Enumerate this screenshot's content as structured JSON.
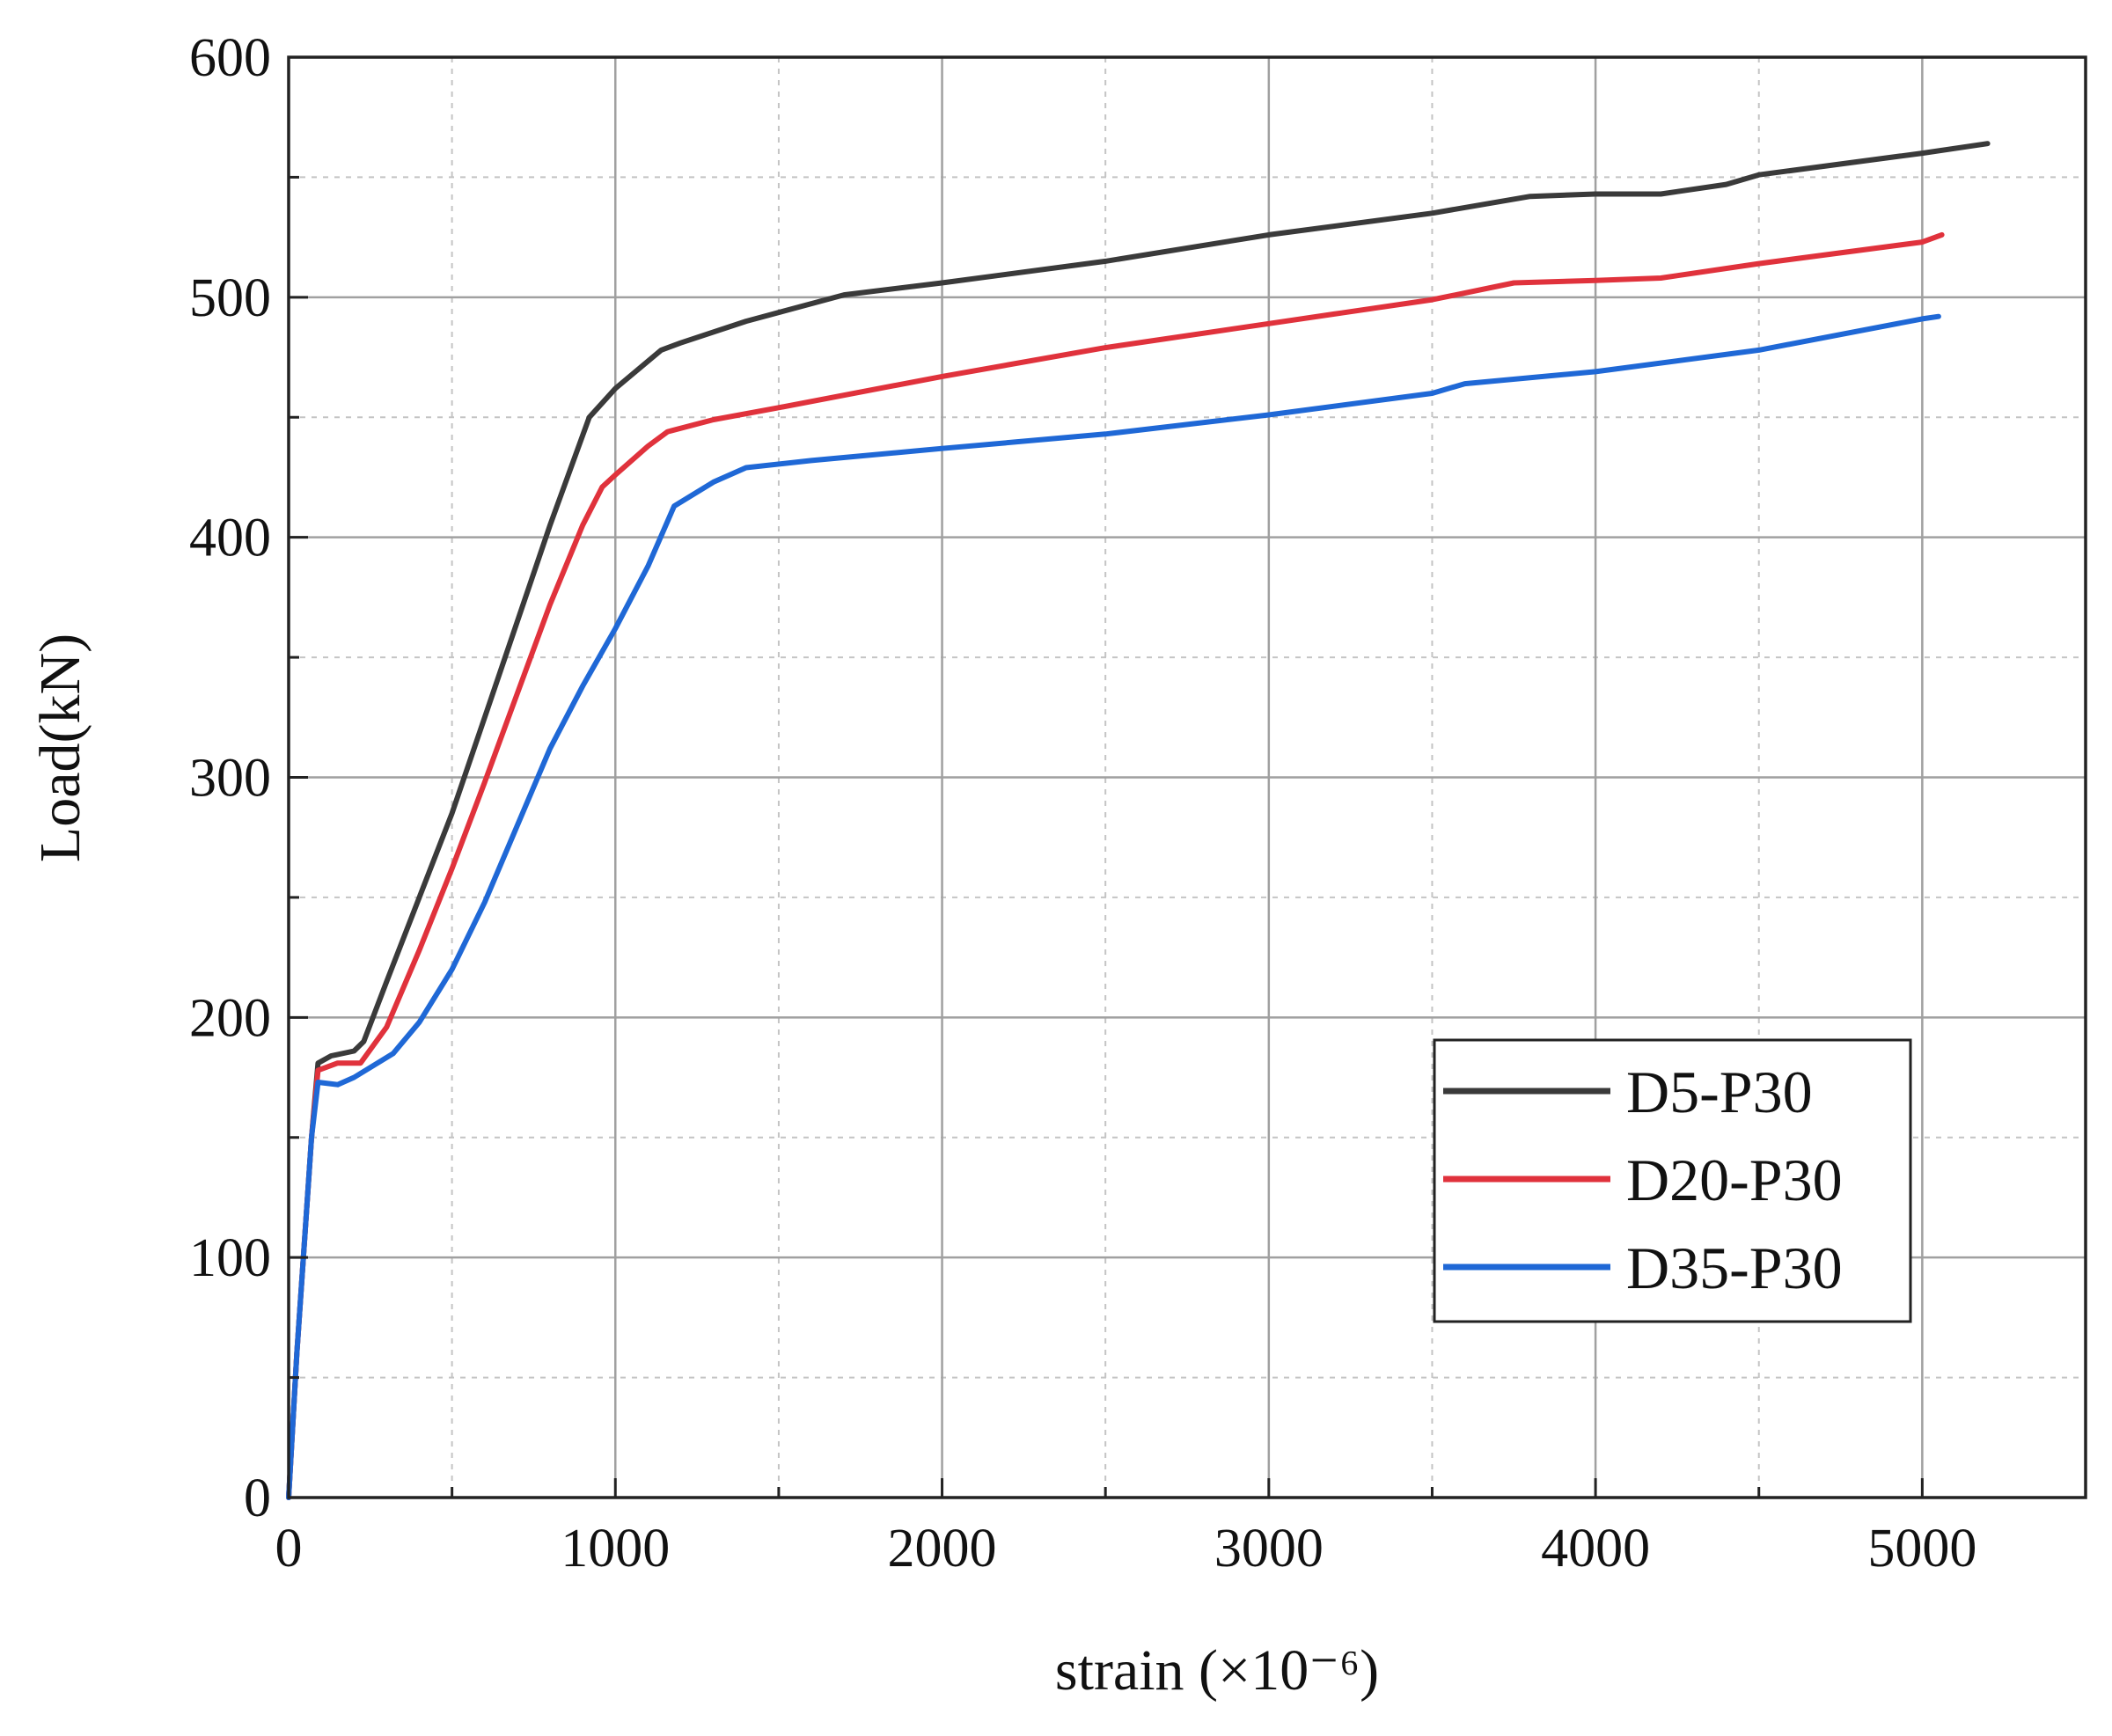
{
  "chart_data": {
    "type": "line",
    "title": "",
    "xlabel": "strain (×10⁻⁶)",
    "ylabel": "Load(kN)",
    "xlim": [
      0,
      5500
    ],
    "ylim": [
      0,
      600
    ],
    "x_ticks": [
      0,
      1000,
      2000,
      3000,
      4000,
      5000
    ],
    "x_tick_labels": [
      "0",
      "1000",
      "2000",
      "3000",
      "4000",
      "5000"
    ],
    "y_ticks": [
      0,
      100,
      200,
      300,
      400,
      500,
      600
    ],
    "y_tick_labels": [
      "0",
      "100",
      "200",
      "300",
      "400",
      "500",
      "600"
    ],
    "x_minor_step": 500,
    "y_minor_step": 50,
    "grid": true,
    "legend_position": "bottom-right",
    "series": [
      {
        "name": "D5-P30",
        "color": "#3a3a3a",
        "points": [
          [
            0,
            0
          ],
          [
            25,
            60
          ],
          [
            50,
            110
          ],
          [
            70,
            150
          ],
          [
            90,
            181
          ],
          [
            130,
            184
          ],
          [
            200,
            186
          ],
          [
            230,
            190
          ],
          [
            300,
            215
          ],
          [
            400,
            250
          ],
          [
            500,
            285
          ],
          [
            600,
            325
          ],
          [
            700,
            365
          ],
          [
            800,
            405
          ],
          [
            920,
            450
          ],
          [
            1000,
            462
          ],
          [
            1140,
            478
          ],
          [
            1200,
            481
          ],
          [
            1400,
            490
          ],
          [
            1700,
            501
          ],
          [
            2000,
            506
          ],
          [
            2500,
            515
          ],
          [
            3000,
            526
          ],
          [
            3500,
            535
          ],
          [
            3800,
            542
          ],
          [
            4000,
            543
          ],
          [
            4200,
            543
          ],
          [
            4400,
            547
          ],
          [
            4500,
            551
          ],
          [
            5000,
            560
          ],
          [
            5200,
            564
          ]
        ]
      },
      {
        "name": "D20-P30",
        "color": "#e0323c",
        "points": [
          [
            0,
            0
          ],
          [
            25,
            60
          ],
          [
            50,
            110
          ],
          [
            70,
            150
          ],
          [
            90,
            178
          ],
          [
            150,
            181
          ],
          [
            220,
            181
          ],
          [
            300,
            196
          ],
          [
            400,
            228
          ],
          [
            500,
            262
          ],
          [
            600,
            298
          ],
          [
            700,
            335
          ],
          [
            800,
            372
          ],
          [
            900,
            405
          ],
          [
            960,
            421
          ],
          [
            1000,
            426
          ],
          [
            1100,
            438
          ],
          [
            1160,
            444
          ],
          [
            1300,
            449
          ],
          [
            1500,
            454
          ],
          [
            2000,
            467
          ],
          [
            2500,
            479
          ],
          [
            3000,
            489
          ],
          [
            3200,
            493
          ],
          [
            3500,
            499
          ],
          [
            3750,
            506
          ],
          [
            4000,
            507
          ],
          [
            4200,
            508
          ],
          [
            4500,
            514
          ],
          [
            5000,
            523
          ],
          [
            5060,
            526
          ]
        ]
      },
      {
        "name": "D35-P30",
        "color": "#1f68d6",
        "points": [
          [
            0,
            0
          ],
          [
            25,
            60
          ],
          [
            50,
            110
          ],
          [
            70,
            150
          ],
          [
            90,
            173
          ],
          [
            150,
            172
          ],
          [
            200,
            175
          ],
          [
            320,
            185
          ],
          [
            400,
            198
          ],
          [
            500,
            220
          ],
          [
            600,
            248
          ],
          [
            700,
            280
          ],
          [
            800,
            312
          ],
          [
            900,
            338
          ],
          [
            1000,
            362
          ],
          [
            1100,
            388
          ],
          [
            1180,
            413
          ],
          [
            1300,
            423
          ],
          [
            1400,
            429
          ],
          [
            1600,
            432
          ],
          [
            2000,
            437
          ],
          [
            2500,
            443
          ],
          [
            3000,
            451
          ],
          [
            3500,
            460
          ],
          [
            3600,
            464
          ],
          [
            4000,
            469
          ],
          [
            4500,
            478
          ],
          [
            5000,
            491
          ],
          [
            5050,
            492
          ]
        ]
      }
    ]
  }
}
